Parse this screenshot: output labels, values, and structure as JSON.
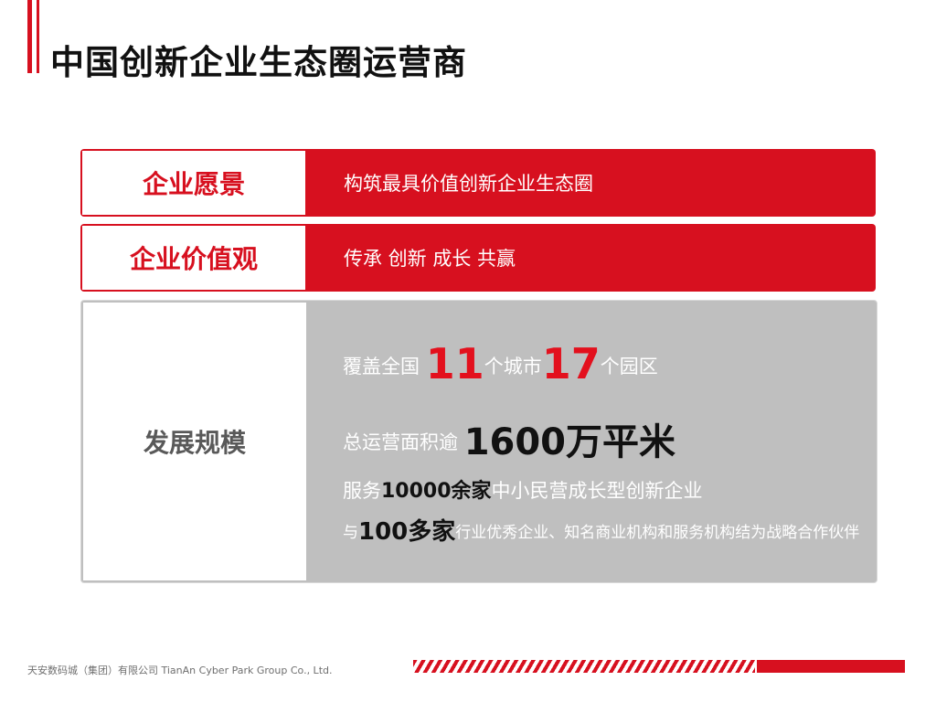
{
  "header": {
    "title": "中国创新企业生态圈运营商"
  },
  "rows": [
    {
      "label": "企业愿景",
      "content": "构筑最具价值创新企业生态圈"
    },
    {
      "label": "企业价值观",
      "content": "传承 创新 成长 共赢"
    }
  ],
  "scale": {
    "label": "发展规模",
    "line1": {
      "prefix": "覆盖全国",
      "cities_number": "11",
      "cities_unit": "个城市",
      "parks_number": "17",
      "parks_unit": "个园区"
    },
    "line2": {
      "prefix": "总运营面积逾",
      "area": "1600万平米"
    },
    "line3": {
      "prefix": "服务",
      "count": "10000余家",
      "suffix": "中小民营成长型创新企业"
    },
    "line4": {
      "prefix": "与",
      "count": "100多家",
      "suffix": "行业优秀企业、知名商业机构和服务机构结为战略合作伙伴"
    }
  },
  "footer": {
    "company": "天安数码城（集团）有限公司  TianAn Cyber Park Group Co., Ltd."
  },
  "colors": {
    "accent": "#d7101f",
    "panel_gray": "#bfbfbf"
  }
}
